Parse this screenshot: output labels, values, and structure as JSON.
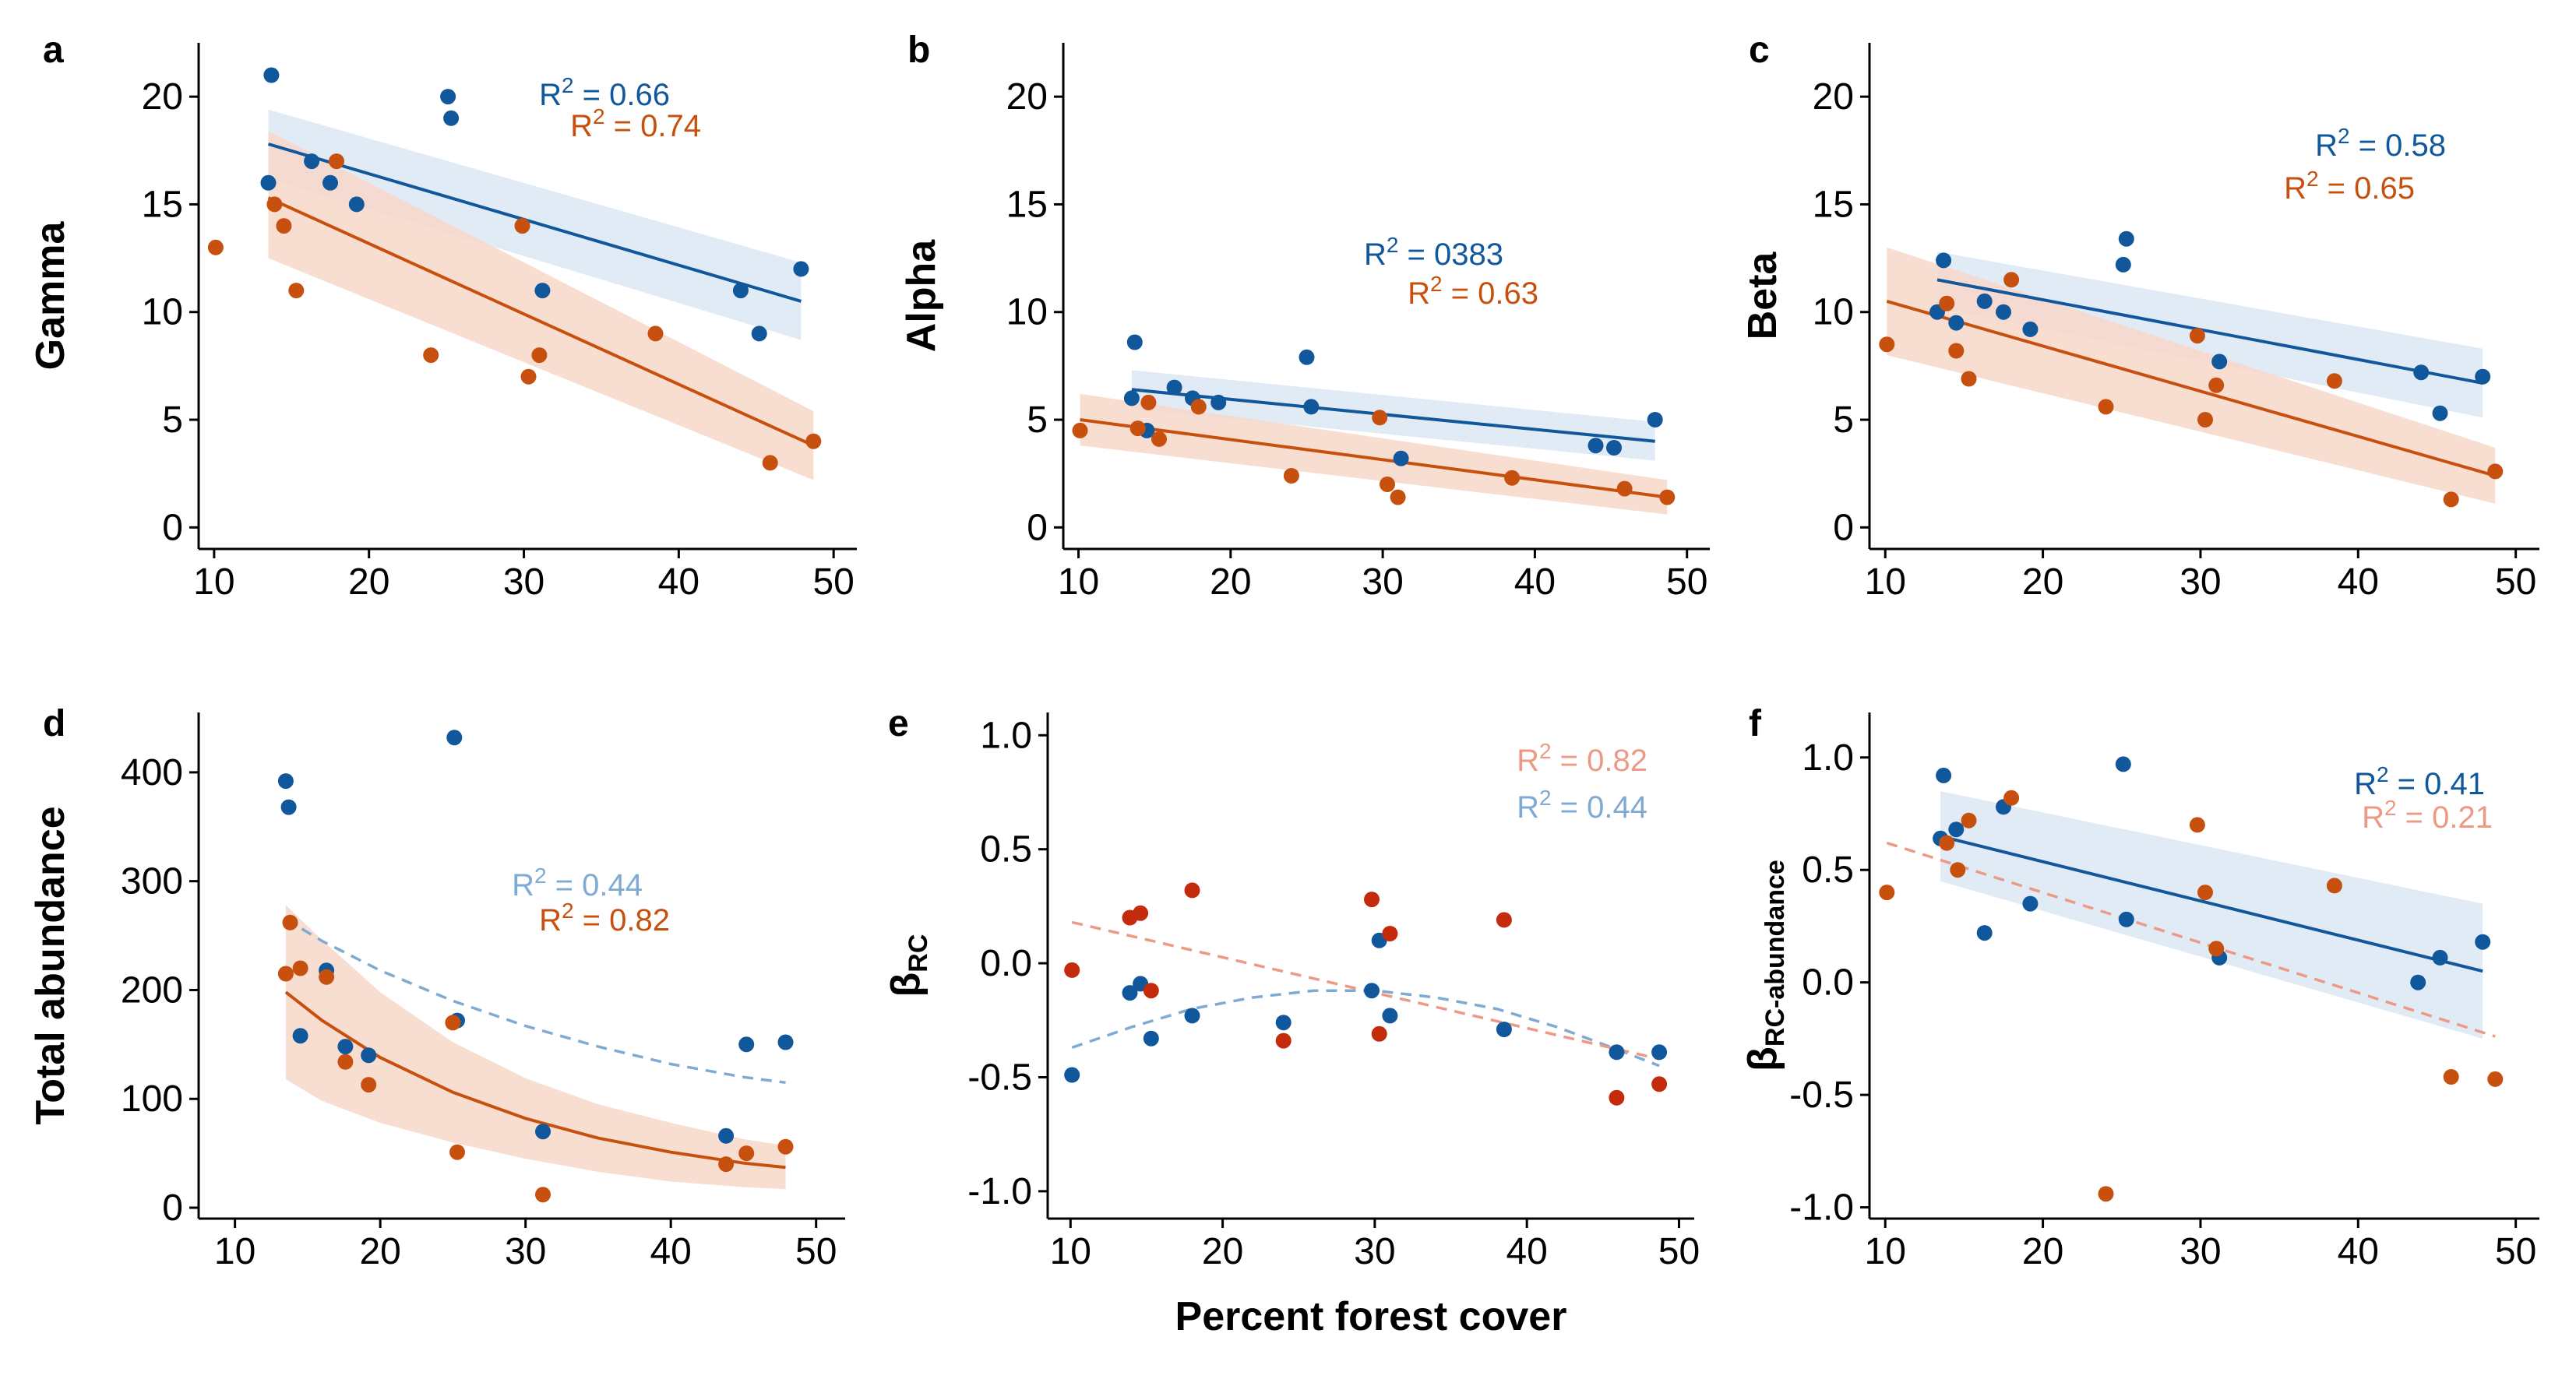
{
  "figure": {
    "xlabel": "Percent forest cover",
    "colors": {
      "blue": "#11579B",
      "orange": "#C8500E",
      "blue_band": "#DCE7F3",
      "orange_band": "#F7D7C9",
      "light_blue": "#7EAAD3",
      "light_orange": "#EC9A85",
      "red_point": "#C42A0C"
    }
  },
  "chart_data": [
    {
      "type": "scatter",
      "panel": "a",
      "ylabel": "Gamma",
      "xlim": [
        9,
        51.5
      ],
      "ylim": [
        -1,
        22.5
      ],
      "xticks": [
        "10",
        "20",
        "30",
        "40",
        "50"
      ],
      "yticks": [
        "0",
        "5",
        "10",
        "15",
        "20"
      ],
      "annotations": [
        "R2 = 0.66",
        "R2 = 0.74"
      ],
      "series": [
        {
          "name": "",
          "color": "blue",
          "x": [
            13.5,
            13.7,
            16.3,
            17.5,
            19.2,
            25.1,
            25.3,
            31.2,
            44.0,
            45.2,
            47.9
          ],
          "y": [
            16,
            21,
            17,
            16,
            15,
            20,
            19,
            11,
            11,
            9,
            12
          ],
          "fit": {
            "x": [
              13.5,
              47.9
            ],
            "y": [
              17.8,
              10.5
            ],
            "band": {
              "lower": [
                16.2,
                8.7
              ],
              "upper": [
                19.4,
                12.3
              ]
            },
            "style": "solid"
          }
        },
        {
          "name": "",
          "color": "orange",
          "x": [
            10.1,
            13.9,
            14.5,
            15.3,
            17.9,
            24.0,
            29.9,
            30.3,
            31.0,
            38.5,
            45.9,
            48.7
          ],
          "y": [
            13,
            15,
            14,
            11,
            17,
            8,
            14,
            7,
            8,
            9,
            3,
            4
          ],
          "fit": {
            "x": [
              13.5,
              48.7
            ],
            "y": [
              15.3,
              3.8
            ],
            "band": {
              "lower": [
                12.5,
                2.2
              ],
              "upper": [
                18.4,
                5.4
              ]
            },
            "style": "solid"
          }
        }
      ]
    },
    {
      "type": "scatter",
      "panel": "b",
      "ylabel": "Alpha",
      "xlim": [
        9,
        51.5
      ],
      "ylim": [
        -1,
        22.5
      ],
      "xticks": [
        "10",
        "20",
        "30",
        "40",
        "50"
      ],
      "yticks": [
        "0",
        "5",
        "10",
        "15",
        "20"
      ],
      "annotations": [
        "R2 = 0383",
        "R2 = 0.63"
      ],
      "series": [
        {
          "name": "",
          "color": "blue",
          "x": [
            13.5,
            13.7,
            14.5,
            16.3,
            17.5,
            19.2,
            25.0,
            25.3,
            31.2,
            44.0,
            45.2,
            47.9
          ],
          "y": [
            6.0,
            8.6,
            4.5,
            6.5,
            6.0,
            5.8,
            7.9,
            5.6,
            3.2,
            3.8,
            3.7,
            5.0
          ],
          "fit": {
            "x": [
              13.5,
              47.9
            ],
            "y": [
              6.4,
              4.0
            ],
            "band": {
              "lower": [
                5.5,
                3.1
              ],
              "upper": [
                7.3,
                4.9
              ]
            },
            "style": "solid"
          }
        },
        {
          "name": "",
          "color": "orange",
          "x": [
            10.1,
            13.9,
            14.6,
            15.3,
            17.9,
            24.0,
            29.8,
            30.3,
            31.0,
            38.5,
            45.9,
            48.7
          ],
          "y": [
            4.5,
            4.6,
            5.8,
            4.1,
            5.6,
            2.4,
            5.1,
            2.0,
            1.4,
            2.3,
            1.8,
            1.4
          ],
          "fit": {
            "x": [
              10.1,
              48.7
            ],
            "y": [
              5.0,
              1.4
            ],
            "band": {
              "lower": [
                3.8,
                0.6
              ],
              "upper": [
                6.2,
                2.2
              ]
            },
            "style": "solid"
          }
        }
      ]
    },
    {
      "type": "scatter",
      "panel": "c",
      "ylabel": "Beta",
      "xlim": [
        9,
        51.5
      ],
      "ylim": [
        -1,
        22.5
      ],
      "xticks": [
        "10",
        "20",
        "30",
        "40",
        "50"
      ],
      "yticks": [
        "0",
        "5",
        "10",
        "15",
        "20"
      ],
      "annotations": [
        "R2 = 0.58",
        "R2 = 0.65"
      ],
      "series": [
        {
          "name": "",
          "color": "blue",
          "x": [
            13.3,
            13.7,
            14.5,
            16.3,
            17.5,
            19.2,
            25.1,
            25.3,
            31.2,
            44.0,
            45.2,
            47.9
          ],
          "y": [
            10.0,
            12.4,
            9.5,
            10.5,
            10.0,
            9.2,
            12.2,
            13.4,
            7.7,
            7.2,
            5.3,
            7.0
          ],
          "fit": {
            "x": [
              13.3,
              47.9
            ],
            "y": [
              11.5,
              6.7
            ],
            "band": {
              "lower": [
                10.2,
                5.1
              ],
              "upper": [
                12.8,
                8.3
              ]
            },
            "style": "solid"
          }
        },
        {
          "name": "",
          "color": "orange",
          "x": [
            10.1,
            13.9,
            14.5,
            15.3,
            18.0,
            24.0,
            29.8,
            30.3,
            31.0,
            38.5,
            45.9,
            48.7
          ],
          "y": [
            8.5,
            10.4,
            8.2,
            6.9,
            11.5,
            5.6,
            8.9,
            5.0,
            6.6,
            6.8,
            1.3,
            2.6
          ],
          "fit": {
            "x": [
              10.1,
              48.7
            ],
            "y": [
              10.5,
              2.4
            ],
            "band": {
              "lower": [
                8.0,
                1.1
              ],
              "upper": [
                13.0,
                3.7
              ]
            },
            "style": "solid"
          }
        }
      ]
    },
    {
      "type": "scatter",
      "panel": "d",
      "ylabel": "Total abundance",
      "xlim": [
        7.5,
        52
      ],
      "ylim": [
        -10,
        455
      ],
      "xticks": [
        "10",
        "20",
        "30",
        "40",
        "50"
      ],
      "yticks": [
        "0",
        "100",
        "200",
        "300",
        "400"
      ],
      "annotations": [
        "R2 = 0.44",
        "R2 = 0.82"
      ],
      "series": [
        {
          "name": "",
          "color": "blue",
          "x": [
            13.5,
            13.7,
            14.5,
            16.3,
            17.6,
            19.2,
            25.1,
            25.3,
            31.2,
            43.8,
            45.2,
            47.9
          ],
          "y": [
            392,
            368,
            158,
            218,
            148,
            140,
            432,
            172,
            70,
            66,
            150,
            152
          ],
          "fit": {
            "x": [
              13.5,
              16,
              20,
              25,
              30,
              35,
              40,
              45,
              47.9
            ],
            "y": [
              265,
              245,
              218,
              190,
              167,
              148,
              132,
              120,
              115
            ],
            "style": "dashed",
            "color": "light_blue"
          }
        },
        {
          "name": "",
          "color": "orange",
          "x": [
            13.5,
            13.8,
            14.5,
            16.3,
            17.6,
            19.2,
            25.0,
            25.3,
            31.2,
            43.8,
            45.2,
            47.9
          ],
          "y": [
            215,
            262,
            220,
            212,
            134,
            113,
            170,
            51,
            12,
            40,
            50,
            56
          ],
          "fit": {
            "x": [
              13.5,
              16,
              20,
              25,
              30,
              35,
              40,
              45,
              47.9
            ],
            "y": [
              198,
              172,
              138,
              106,
              82,
              64,
              51,
              41,
              37
            ],
            "band": {
              "lower": [
                118,
                98,
                78,
                60,
                45,
                33,
                24,
                19,
                17
              ],
              "upper": [
                278,
                246,
                198,
                152,
                119,
                95,
                78,
                63,
                57
              ]
            },
            "style": "solid"
          }
        }
      ]
    },
    {
      "type": "scatter",
      "panel": "e",
      "ylabel": "βRC",
      "xlim": [
        8.5,
        51
      ],
      "ylim": [
        -1.12,
        1.1
      ],
      "xticks": [
        "10",
        "20",
        "30",
        "40",
        "50"
      ],
      "yticks": [
        "-1.0",
        "-0.5",
        "0.0",
        "0.5",
        "1.0"
      ],
      "annotations": [
        "R2 = 0.82",
        "R2 = 0.44"
      ],
      "series": [
        {
          "name": "",
          "color": "blue",
          "x": [
            10.1,
            13.9,
            14.6,
            15.3,
            18.0,
            24.0,
            29.8,
            30.3,
            31.0,
            38.5,
            45.9,
            48.7
          ],
          "y": [
            -0.49,
            -0.13,
            -0.09,
            -0.33,
            -0.23,
            -0.26,
            -0.12,
            0.1,
            -0.23,
            -0.29,
            -0.39,
            -0.39
          ],
          "fit": {
            "x": [
              10.1,
              14,
              18,
              22,
              26,
              30,
              34,
              38,
              42,
              46,
              48.7
            ],
            "y": [
              -0.37,
              -0.28,
              -0.2,
              -0.15,
              -0.12,
              -0.12,
              -0.15,
              -0.2,
              -0.28,
              -0.38,
              -0.45
            ],
            "style": "dashed",
            "color": "light_blue"
          }
        },
        {
          "name": "",
          "color": "red_point",
          "x": [
            10.1,
            13.9,
            14.6,
            15.3,
            18.0,
            24.0,
            29.8,
            30.3,
            31.0,
            38.5,
            45.9,
            48.7
          ],
          "y": [
            -0.03,
            0.2,
            0.22,
            -0.12,
            0.32,
            -0.34,
            0.28,
            -0.31,
            0.13,
            0.19,
            -0.59,
            -0.53
          ],
          "fit": {
            "x": [
              10.1,
              48.7
            ],
            "y": [
              0.18,
              -0.42
            ],
            "style": "dashed",
            "color": "light_orange"
          }
        }
      ]
    },
    {
      "type": "scatter",
      "panel": "f",
      "ylabel": "βRC-abundance",
      "xlim": [
        9,
        51.5
      ],
      "ylim": [
        -1.05,
        1.2
      ],
      "xticks": [
        "10",
        "20",
        "30",
        "40",
        "50"
      ],
      "yticks": [
        "-1.0",
        "-0.5",
        "0.0",
        "0.5",
        "1.0"
      ],
      "annotations": [
        "R2 = 0.41",
        "R2 = 0.21"
      ],
      "series": [
        {
          "name": "",
          "color": "blue",
          "x": [
            13.5,
            13.7,
            14.5,
            16.3,
            17.5,
            19.2,
            25.1,
            25.3,
            31.2,
            43.8,
            45.2,
            47.9
          ],
          "y": [
            0.64,
            0.92,
            0.68,
            0.22,
            0.78,
            0.35,
            0.97,
            0.28,
            0.11,
            0.0,
            0.11,
            0.18
          ],
          "fit": {
            "x": [
              13.5,
              47.9
            ],
            "y": [
              0.65,
              0.05
            ],
            "band": {
              "lower": [
                0.45,
                -0.25
              ],
              "upper": [
                0.85,
                0.35
              ]
            },
            "style": "solid"
          }
        },
        {
          "name": "",
          "color": "orange",
          "x": [
            10.1,
            13.9,
            14.6,
            15.3,
            18.0,
            24.0,
            29.8,
            30.3,
            31.0,
            38.5,
            45.9,
            48.7
          ],
          "y": [
            0.4,
            0.62,
            0.5,
            0.72,
            0.82,
            -0.94,
            0.7,
            0.4,
            0.15,
            0.43,
            -0.42,
            -0.43
          ],
          "fit": {
            "x": [
              10.1,
              48.7
            ],
            "y": [
              0.62,
              -0.24
            ],
            "style": "dashed",
            "color": "light_orange"
          }
        }
      ]
    }
  ]
}
